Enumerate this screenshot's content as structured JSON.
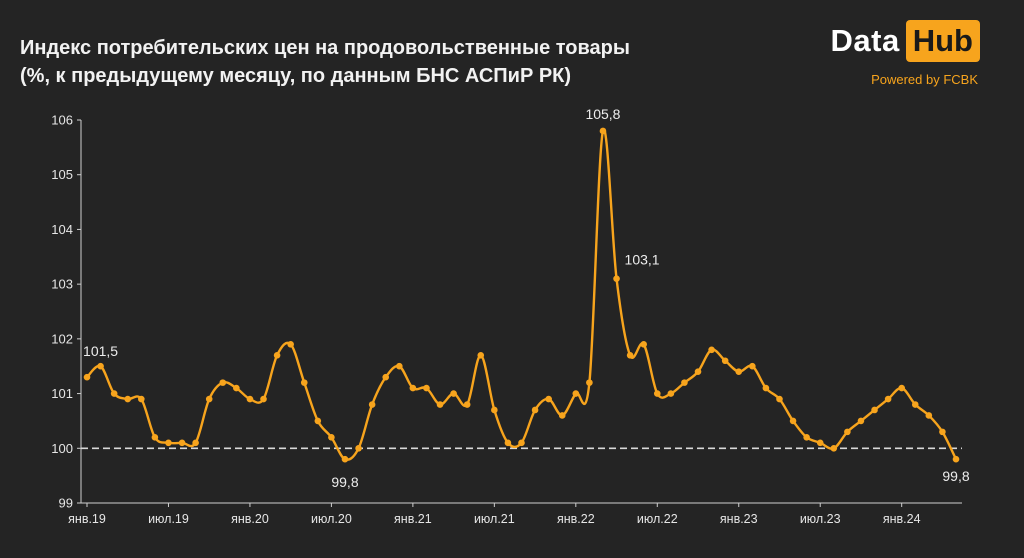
{
  "header": {
    "title_line1": "Индекс потребительских цен на продовольственные товары",
    "title_line2": "(%, к предыдущему месяцу, по данным БНС АСПиР РК)"
  },
  "logo": {
    "data_text": "Data",
    "hub_text": "Hub",
    "powered_by": "Powered by FCBK",
    "accent_color": "#f7a41d"
  },
  "chart_data": {
    "type": "line",
    "title": "Индекс потребительских цен на продовольственные товары",
    "subtitle": "(%, к предыдущему месяцу, по данным БНС АСПиР РК)",
    "xlabel": "",
    "ylabel": "",
    "ylim": [
      99,
      106
    ],
    "y_ticks": [
      "99",
      "100",
      "101",
      "102",
      "103",
      "104",
      "105",
      "106"
    ],
    "x_tick_labels": [
      "янв.19",
      "июл.19",
      "янв.20",
      "июл.20",
      "янв.21",
      "июл.21",
      "янв.22",
      "июл.22",
      "янв.23",
      "июл.23",
      "янв.24"
    ],
    "x_start": "2019-01",
    "grid": false,
    "reference_line": 100,
    "line_color": "#f7a41d",
    "series": [
      {
        "values": [
          101.3,
          101.5,
          101.0,
          100.9,
          100.9,
          100.2,
          100.1,
          100.1,
          100.1,
          100.9,
          101.2,
          101.1,
          100.9,
          100.9,
          101.7,
          101.9,
          101.2,
          100.5,
          100.2,
          99.8,
          100.0,
          100.8,
          101.3,
          101.5,
          101.1,
          101.1,
          100.8,
          101.0,
          100.8,
          101.7,
          100.7,
          100.1,
          100.1,
          100.7,
          100.9,
          100.6,
          101.0,
          101.2,
          105.8,
          103.1,
          101.7,
          101.9,
          101.0,
          101.0,
          101.2,
          101.4,
          101.8,
          101.6,
          101.4,
          101.5,
          101.1,
          100.9,
          100.5,
          100.2,
          100.1,
          100.0,
          100.3,
          100.5,
          100.7,
          100.9,
          101.1,
          100.8,
          100.6,
          100.3,
          99.8
        ]
      }
    ],
    "annotations": [
      {
        "index": 1,
        "label": "101,5"
      },
      {
        "index": 19,
        "label": "99,8"
      },
      {
        "index": 38,
        "label": "105,8"
      },
      {
        "index": 39,
        "label": "103,1"
      },
      {
        "index": 64,
        "label": "99,8"
      }
    ]
  }
}
